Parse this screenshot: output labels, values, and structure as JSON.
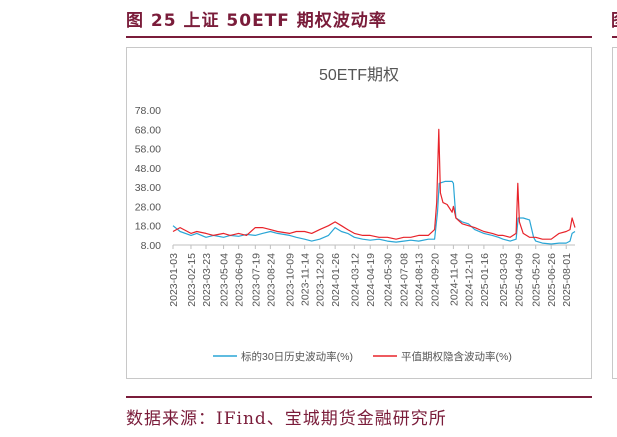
{
  "figure": {
    "title": "图 25 上证 50ETF 期权波动率",
    "source": "数据来源：IFind、宝城期货金融研究所"
  },
  "colors": {
    "accent": "#7a1c3a",
    "series1": "#2aa6d6",
    "series2": "#e8232a"
  },
  "chart_data": {
    "type": "line",
    "title": "50ETF期权",
    "ylim": [
      8,
      78
    ],
    "yticks": [
      "78.00",
      "68.00",
      "58.00",
      "48.00",
      "38.00",
      "28.00",
      "18.00",
      "8.00"
    ],
    "xticks": [
      "2023-01-03",
      "2023-02-15",
      "2023-03-23",
      "2023-05-04",
      "2023-06-09",
      "2023-07-19",
      "2023-08-24",
      "2023-10-09",
      "2023-11-14",
      "2023-12-20",
      "2024-01-26",
      "2024-03-12",
      "2024-04-19",
      "2024-05-30",
      "2024-07-08",
      "2024-08-13",
      "2024-09-20",
      "2024-11-04",
      "2024-12-10",
      "2025-01-16",
      "2025-03-03",
      "2025-04-09",
      "2025-05-20",
      "2025-06-26",
      "2025-08-01"
    ],
    "x_end": "2025-08-22",
    "grid": false,
    "legend": "bottom",
    "series": [
      {
        "name": "标的30日历史波动率(%)",
        "points": [
          [
            "2023-01-03",
            18
          ],
          [
            "2023-01-20",
            15
          ],
          [
            "2023-02-15",
            13
          ],
          [
            "2023-03-01",
            14
          ],
          [
            "2023-03-23",
            12
          ],
          [
            "2023-04-10",
            13
          ],
          [
            "2023-05-04",
            12
          ],
          [
            "2023-05-20",
            13
          ],
          [
            "2023-06-09",
            12.5
          ],
          [
            "2023-06-28",
            13.5
          ],
          [
            "2023-07-19",
            13
          ],
          [
            "2023-08-05",
            14
          ],
          [
            "2023-08-24",
            15
          ],
          [
            "2023-09-10",
            14
          ],
          [
            "2023-10-09",
            13
          ],
          [
            "2023-10-25",
            12
          ],
          [
            "2023-11-14",
            11
          ],
          [
            "2023-12-01",
            10
          ],
          [
            "2023-12-20",
            11
          ],
          [
            "2024-01-10",
            13
          ],
          [
            "2024-01-26",
            17
          ],
          [
            "2024-02-10",
            15
          ],
          [
            "2024-02-25",
            14
          ],
          [
            "2024-03-12",
            12
          ],
          [
            "2024-04-01",
            11
          ],
          [
            "2024-04-19",
            10.5
          ],
          [
            "2024-05-10",
            11
          ],
          [
            "2024-05-30",
            10
          ],
          [
            "2024-06-20",
            9.5
          ],
          [
            "2024-07-08",
            10
          ],
          [
            "2024-07-25",
            10.5
          ],
          [
            "2024-08-13",
            10
          ],
          [
            "2024-09-05",
            11
          ],
          [
            "2024-09-20",
            11
          ],
          [
            "2024-09-27",
            25
          ],
          [
            "2024-10-01",
            40
          ],
          [
            "2024-10-15",
            41
          ],
          [
            "2024-11-01",
            41
          ],
          [
            "2024-11-04",
            40
          ],
          [
            "2024-11-10",
            22
          ],
          [
            "2024-11-25",
            20
          ],
          [
            "2024-12-10",
            19
          ],
          [
            "2024-12-25",
            16
          ],
          [
            "2025-01-16",
            14
          ],
          [
            "2025-02-05",
            13
          ],
          [
            "2025-02-20",
            12
          ],
          [
            "2025-03-03",
            11
          ],
          [
            "2025-03-20",
            10
          ],
          [
            "2025-04-03",
            11
          ],
          [
            "2025-04-08",
            22
          ],
          [
            "2025-04-20",
            22
          ],
          [
            "2025-05-05",
            21
          ],
          [
            "2025-05-15",
            12
          ],
          [
            "2025-05-20",
            10
          ],
          [
            "2025-06-05",
            9
          ],
          [
            "2025-06-26",
            8.5
          ],
          [
            "2025-07-15",
            9
          ],
          [
            "2025-08-01",
            9
          ],
          [
            "2025-08-10",
            10
          ],
          [
            "2025-08-15",
            14
          ],
          [
            "2025-08-22",
            15
          ]
        ]
      },
      {
        "name": "平值期权隐含波动率(%)",
        "points": [
          [
            "2023-01-03",
            15
          ],
          [
            "2023-01-20",
            17
          ],
          [
            "2023-02-15",
            14
          ],
          [
            "2023-03-01",
            15
          ],
          [
            "2023-03-23",
            14
          ],
          [
            "2023-04-10",
            13
          ],
          [
            "2023-05-04",
            14
          ],
          [
            "2023-05-20",
            13
          ],
          [
            "2023-06-09",
            14
          ],
          [
            "2023-06-28",
            13
          ],
          [
            "2023-07-19",
            17
          ],
          [
            "2023-08-05",
            17
          ],
          [
            "2023-08-24",
            16
          ],
          [
            "2023-09-10",
            15
          ],
          [
            "2023-10-09",
            14
          ],
          [
            "2023-10-25",
            15
          ],
          [
            "2023-11-14",
            15
          ],
          [
            "2023-12-01",
            14
          ],
          [
            "2023-12-20",
            16
          ],
          [
            "2024-01-10",
            18
          ],
          [
            "2024-01-26",
            20
          ],
          [
            "2024-02-10",
            18
          ],
          [
            "2024-02-25",
            16
          ],
          [
            "2024-03-12",
            14
          ],
          [
            "2024-04-01",
            13
          ],
          [
            "2024-04-19",
            13
          ],
          [
            "2024-05-10",
            12
          ],
          [
            "2024-05-30",
            12
          ],
          [
            "2024-06-20",
            11
          ],
          [
            "2024-07-08",
            12
          ],
          [
            "2024-07-25",
            12
          ],
          [
            "2024-08-13",
            13
          ],
          [
            "2024-09-05",
            13
          ],
          [
            "2024-09-20",
            16
          ],
          [
            "2024-09-25",
            30
          ],
          [
            "2024-09-30",
            68
          ],
          [
            "2024-10-04",
            35
          ],
          [
            "2024-10-10",
            30
          ],
          [
            "2024-10-20",
            29
          ],
          [
            "2024-11-01",
            25
          ],
          [
            "2024-11-04",
            28
          ],
          [
            "2024-11-10",
            22
          ],
          [
            "2024-11-25",
            19
          ],
          [
            "2024-12-10",
            18
          ],
          [
            "2024-12-25",
            17
          ],
          [
            "2025-01-16",
            15
          ],
          [
            "2025-02-05",
            14
          ],
          [
            "2025-02-20",
            13
          ],
          [
            "2025-03-03",
            13
          ],
          [
            "2025-03-20",
            12
          ],
          [
            "2025-04-03",
            14
          ],
          [
            "2025-04-07",
            40
          ],
          [
            "2025-04-11",
            20
          ],
          [
            "2025-04-20",
            14
          ],
          [
            "2025-05-05",
            12
          ],
          [
            "2025-05-20",
            12
          ],
          [
            "2025-06-05",
            11
          ],
          [
            "2025-06-26",
            11
          ],
          [
            "2025-07-15",
            14
          ],
          [
            "2025-08-01",
            15
          ],
          [
            "2025-08-10",
            16
          ],
          [
            "2025-08-15",
            22
          ],
          [
            "2025-08-22",
            17
          ]
        ]
      }
    ]
  }
}
